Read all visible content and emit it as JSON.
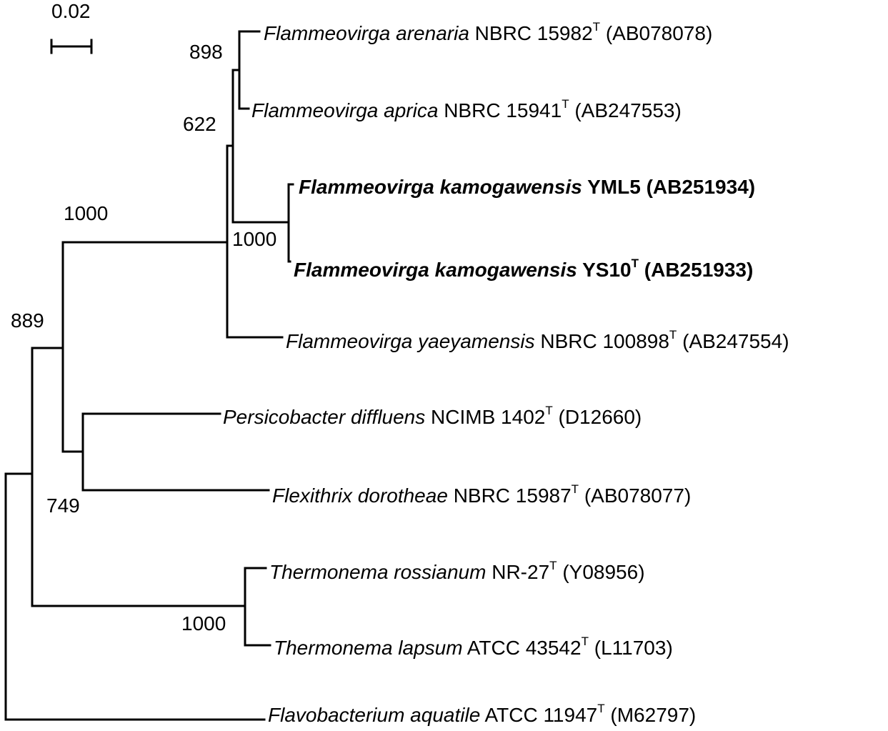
{
  "scale_bar": {
    "label": "0.02"
  },
  "taxa": [
    {
      "species": "Flammeovirga arenaria",
      "strain": "NBRC 15982",
      "type_mark": "T",
      "accession": "(AB078078)",
      "bold": false
    },
    {
      "species": "Flammeovirga aprica",
      "strain": "NBRC 15941",
      "type_mark": "T",
      "accession": "(AB247553)",
      "bold": false
    },
    {
      "species": "Flammeovirga kamogawensis",
      "strain": "YML5",
      "type_mark": "",
      "accession": "(AB251934)",
      "bold": true
    },
    {
      "species": "Flammeovirga kamogawensis",
      "strain": "YS10",
      "type_mark": "T",
      "accession": "(AB251933)",
      "bold": true
    },
    {
      "species": "Flammeovirga yaeyamensis",
      "strain": "NBRC 100898",
      "type_mark": "T",
      "accession": "(AB247554)",
      "bold": false
    },
    {
      "species": "Persicobacter diffluens",
      "strain": "NCIMB 1402",
      "type_mark": "T",
      "accession": "(D12660)",
      "bold": false
    },
    {
      "species": "Flexithrix dorotheae",
      "strain": "NBRC 15987",
      "type_mark": "T",
      "accession": "(AB078077)",
      "bold": false
    },
    {
      "species": "Thermonema rossianum",
      "strain": "NR-27",
      "type_mark": "T",
      "accession": "(Y08956)",
      "bold": false
    },
    {
      "species": "Thermonema lapsum",
      "strain": "ATCC 43542",
      "type_mark": "T",
      "accession": "(L11703)",
      "bold": false
    },
    {
      "species": "Flavobacterium aquatile",
      "strain": "ATCC 11947",
      "type_mark": "T",
      "accession": "(M62797)",
      "bold": false
    }
  ],
  "bootstrap": [
    {
      "node": "arenaria-aprica",
      "value": "898"
    },
    {
      "node": "arenaria-aprica-kamogawensis",
      "value": "622"
    },
    {
      "node": "flammeovirga-clade",
      "value": "1000"
    },
    {
      "node": "kamogawensis",
      "value": "1000"
    },
    {
      "node": "ingroup",
      "value": "889"
    },
    {
      "node": "persicobacter-flexithrix",
      "value": "749"
    },
    {
      "node": "thermonema",
      "value": "1000"
    }
  ]
}
